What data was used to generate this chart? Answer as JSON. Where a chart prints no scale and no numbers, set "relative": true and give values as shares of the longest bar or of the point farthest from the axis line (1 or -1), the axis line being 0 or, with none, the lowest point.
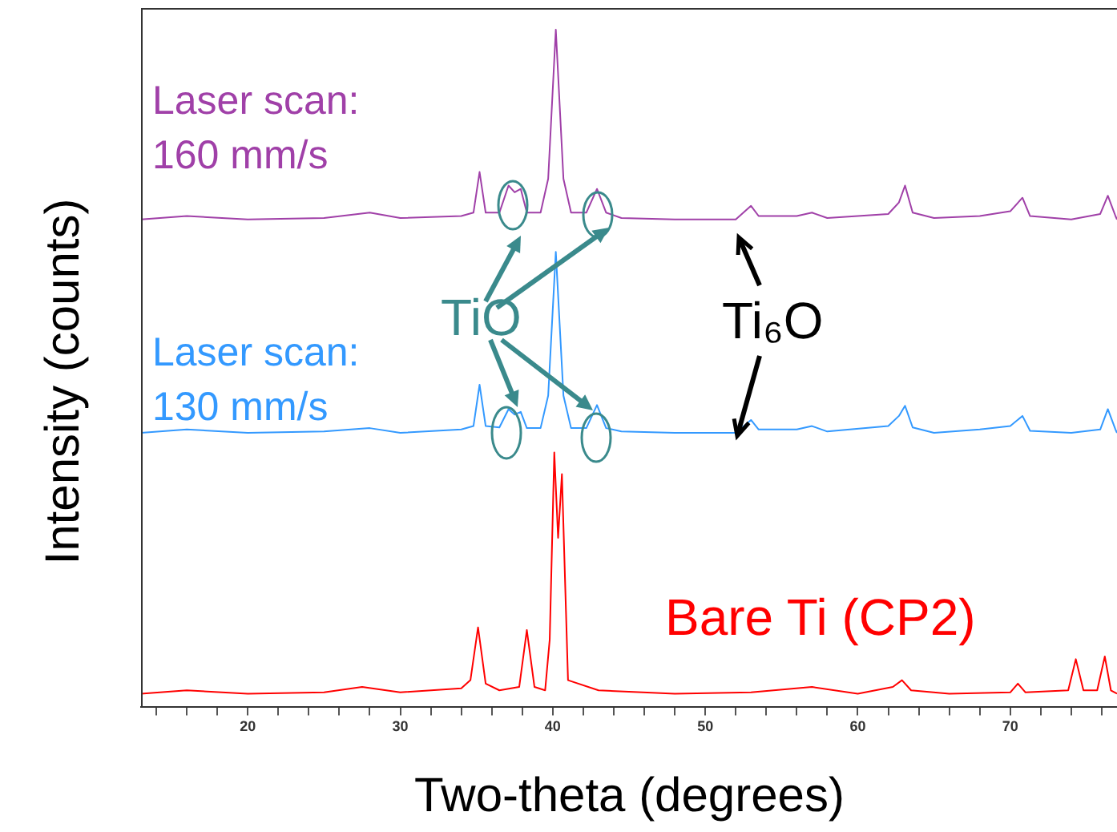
{
  "chart_data": {
    "type": "line",
    "relative": true,
    "xlabel": "Two-theta (degrees)",
    "ylabel": "Intensity (counts)",
    "xlim": [
      13,
      77
    ],
    "xticks": [
      {
        "value": 14,
        "label": null
      },
      {
        "value": 16,
        "label": null
      },
      {
        "value": 18,
        "label": null
      },
      20,
      {
        "value": 22,
        "label": null
      },
      {
        "value": 24,
        "label": null
      },
      {
        "value": 26,
        "label": null
      },
      {
        "value": 28,
        "label": null
      },
      30,
      {
        "value": 32,
        "label": null
      },
      {
        "value": 34,
        "label": null
      },
      {
        "value": 36,
        "label": null
      },
      {
        "value": 38,
        "label": null
      },
      40,
      {
        "value": 42,
        "label": null
      },
      {
        "value": 44,
        "label": null
      },
      {
        "value": 46,
        "label": null
      },
      {
        "value": 48,
        "label": null
      },
      50,
      {
        "value": 52,
        "label": null
      },
      {
        "value": 54,
        "label": null
      },
      {
        "value": 56,
        "label": null
      },
      {
        "value": 58,
        "label": null
      },
      60,
      {
        "value": 62,
        "label": null
      },
      {
        "value": 64,
        "label": null
      },
      {
        "value": 66,
        "label": null
      },
      {
        "value": 68,
        "label": null
      },
      70,
      {
        "value": 72,
        "label": null
      },
      {
        "value": 74,
        "label": null
      },
      {
        "value": 76,
        "label": null
      }
    ],
    "marker": "none",
    "line_style": "solid",
    "series": [
      {
        "name": "Laser scan: 160 mm/s",
        "color": "#a040a8",
        "x": [
          13,
          16,
          20,
          25,
          28,
          30,
          34,
          34.8,
          35.2,
          35.6,
          36.5,
          37.1,
          37.5,
          37.9,
          38.3,
          39.2,
          39.7,
          40.2,
          40.7,
          41.2,
          42.2,
          42.9,
          43.5,
          44.5,
          48,
          52,
          53,
          53.5,
          56,
          57,
          58,
          62,
          62.7,
          63.1,
          63.6,
          65,
          68,
          70,
          70.8,
          71.3,
          74,
          75.9,
          76.4,
          76.9,
          77
        ],
        "values": [
          0.72,
          0.725,
          0.72,
          0.722,
          0.73,
          0.722,
          0.725,
          0.73,
          0.79,
          0.73,
          0.73,
          0.77,
          0.76,
          0.765,
          0.73,
          0.73,
          0.78,
          1.0,
          0.78,
          0.73,
          0.73,
          0.765,
          0.73,
          0.722,
          0.72,
          0.72,
          0.74,
          0.725,
          0.725,
          0.73,
          0.722,
          0.728,
          0.745,
          0.77,
          0.73,
          0.722,
          0.725,
          0.732,
          0.752,
          0.725,
          0.72,
          0.728,
          0.755,
          0.725,
          0.72
        ]
      },
      {
        "name": "Laser scan: 130 mm/s",
        "color": "#3399ff",
        "x": [
          13,
          16,
          20,
          25,
          28,
          30,
          34,
          34.8,
          35.2,
          35.6,
          36.5,
          37.1,
          37.5,
          37.9,
          38.3,
          39.2,
          39.7,
          40.2,
          40.7,
          41.2,
          42.2,
          42.9,
          43.5,
          44.5,
          48,
          52,
          53,
          53.5,
          56,
          57,
          58,
          62,
          62.7,
          63.1,
          63.6,
          65,
          68,
          70,
          70.8,
          71.3,
          74,
          75.9,
          76.4,
          76.9,
          77
        ],
        "values": [
          0.405,
          0.41,
          0.405,
          0.407,
          0.412,
          0.405,
          0.41,
          0.415,
          0.476,
          0.415,
          0.413,
          0.44,
          0.432,
          0.436,
          0.412,
          0.412,
          0.46,
          0.672,
          0.46,
          0.412,
          0.412,
          0.446,
          0.412,
          0.407,
          0.405,
          0.405,
          0.424,
          0.41,
          0.41,
          0.415,
          0.407,
          0.415,
          0.43,
          0.445,
          0.413,
          0.405,
          0.41,
          0.415,
          0.43,
          0.408,
          0.405,
          0.41,
          0.44,
          0.41,
          0.405
        ]
      },
      {
        "name": "Bare Ti (CP2)",
        "color": "#ff0000",
        "x": [
          13,
          16,
          20,
          25,
          27.5,
          30,
          34,
          34.6,
          35.1,
          35.6,
          36.5,
          37.8,
          38.3,
          38.8,
          39.5,
          39.8,
          40.1,
          40.35,
          40.6,
          41,
          43,
          48,
          53,
          57,
          60,
          62.3,
          62.9,
          63.5,
          66,
          70,
          70.5,
          71,
          73.8,
          74.3,
          74.8,
          75.7,
          76.2,
          76.6,
          77
        ],
        "values": [
          0.02,
          0.025,
          0.02,
          0.022,
          0.03,
          0.022,
          0.028,
          0.04,
          0.118,
          0.035,
          0.025,
          0.03,
          0.114,
          0.03,
          0.025,
          0.1,
          0.376,
          0.25,
          0.344,
          0.04,
          0.025,
          0.02,
          0.022,
          0.03,
          0.02,
          0.03,
          0.04,
          0.025,
          0.02,
          0.022,
          0.035,
          0.022,
          0.025,
          0.071,
          0.025,
          0.025,
          0.075,
          0.025,
          0.02
        ]
      }
    ],
    "annotations": [
      "TiO",
      "Ti₆O"
    ]
  }
}
